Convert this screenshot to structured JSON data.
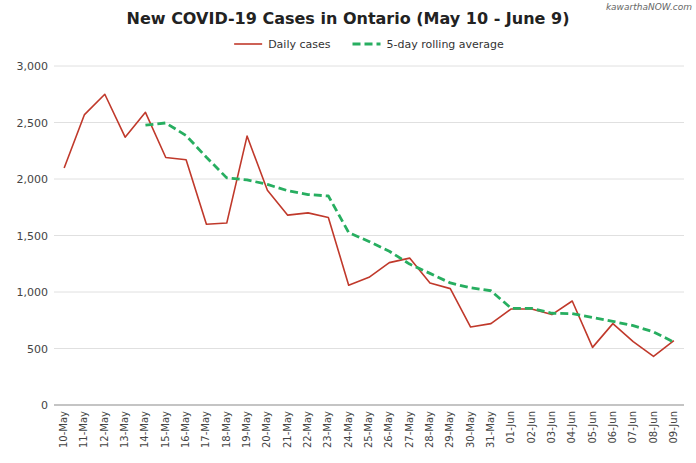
{
  "chart_data": {
    "type": "line",
    "title": "New COVID-19 Cases in Ontario (May 10 - June 9)",
    "annotations": [
      "kawarthaNOW.com"
    ],
    "categories": [
      "10-May",
      "11-May",
      "12-May",
      "13-May",
      "14-May",
      "15-May",
      "16-May",
      "17-May",
      "18-May",
      "19-May",
      "20-May",
      "21-May",
      "22-May",
      "23-May",
      "24-May",
      "25-May",
      "26-May",
      "27-May",
      "28-May",
      "29-May",
      "30-May",
      "31-May",
      "01-Jun",
      "02-Jun",
      "03-Jun",
      "04-Jun",
      "05-Jun",
      "06-Jun",
      "07-Jun",
      "08-Jun",
      "09-Jun"
    ],
    "series": [
      {
        "name": "Daily cases",
        "color": "#c0392b",
        "line_style": "solid",
        "values": [
          2098,
          2570,
          2750,
          2370,
          2590,
          2190,
          2170,
          1600,
          1610,
          2380,
          1900,
          1680,
          1700,
          1660,
          1060,
          1130,
          1260,
          1300,
          1080,
          1030,
          690,
          720,
          850,
          850,
          800,
          920,
          510,
          720,
          560,
          430,
          570
        ]
      },
      {
        "name": "5-day rolling average",
        "color": "#27ae60",
        "line_style": "dashed",
        "values": [
          null,
          null,
          null,
          null,
          2476,
          2496,
          2384,
          2192,
          2010,
          1992,
          1952,
          1896,
          1862,
          1850,
          1526,
          1447,
          1361,
          1247,
          1165,
          1080,
          1037,
          1011,
          855,
          855,
          812,
          808,
          775,
          740,
          702,
          647,
          557
        ]
      }
    ],
    "ylim": [
      0,
      3000
    ],
    "yticks": [
      0,
      500,
      {
        "value": 1000,
        "label": "1,000"
      },
      {
        "value": 1500,
        "label": "1,500"
      },
      {
        "value": 2000,
        "label": "2,000"
      },
      {
        "value": 2500,
        "label": "2,500"
      },
      {
        "value": 3000,
        "label": "3,000"
      }
    ],
    "grid": true,
    "legend": "top"
  }
}
